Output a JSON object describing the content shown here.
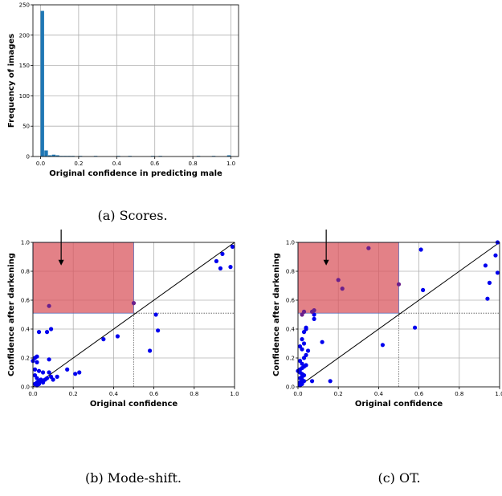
{
  "captions": {
    "a": "(a) Scores.",
    "b": "(b) Mode-shift.",
    "c": "(c) OT."
  },
  "colors": {
    "bar": "#1f77b4",
    "point": "#0000ee",
    "point_in_region": "#6a1f8c",
    "region": "#d9575f",
    "grid": "#b0b0b0"
  },
  "chart_data": [
    {
      "type": "bar",
      "id": "histogram",
      "title": "",
      "xlabel": "Original confidence in predicting male",
      "ylabel": "Frequency of images",
      "xlim": [
        -0.04,
        1.04
      ],
      "ylim": [
        0,
        250
      ],
      "xticks": [
        0.0,
        0.2,
        0.4,
        0.6,
        0.8,
        1.0
      ],
      "xtick_labels": [
        "0.0",
        "0.2",
        "0.4",
        "0.6",
        "0.8",
        "1.0"
      ],
      "yticks": [
        0,
        50,
        100,
        150,
        200,
        250
      ],
      "ytick_labels": [
        "0",
        "50",
        "100",
        "150",
        "200",
        "250"
      ],
      "grid": true,
      "bin_width": 0.02,
      "bin_starts": [
        0.0,
        0.02,
        0.04,
        0.06,
        0.08,
        0.1,
        0.12,
        0.14,
        0.16,
        0.2,
        0.28,
        0.4,
        0.46,
        0.58,
        0.62,
        0.82,
        0.9,
        0.98
      ],
      "values": [
        240,
        10,
        2,
        3,
        2,
        1,
        1,
        1,
        1,
        1,
        1,
        1,
        1,
        1,
        1,
        1,
        1,
        2
      ]
    },
    {
      "type": "scatter",
      "id": "mode-shift",
      "title": "",
      "xlabel": "Original confidence",
      "ylabel": "Confidence after darkening",
      "xlim": [
        0,
        1
      ],
      "ylim": [
        0,
        1
      ],
      "xticks": [
        0.0,
        0.2,
        0.4,
        0.6,
        0.8,
        1.0
      ],
      "xtick_labels": [
        "0.0",
        "0.2",
        "0.4",
        "0.6",
        "0.8",
        "1.0"
      ],
      "yticks": [
        0.0,
        0.2,
        0.4,
        0.6,
        0.8,
        1.0
      ],
      "ytick_labels": [
        "0.0",
        "0.2",
        "0.4",
        "0.6",
        "0.8",
        "1.0"
      ],
      "grid": true,
      "region": {
        "x": [
          0,
          0.5
        ],
        "y": [
          0.51,
          1.0
        ]
      },
      "arrow": {
        "x": 0.14,
        "y_from": 1.0,
        "y_to": 0.84
      },
      "points_x": [
        0.01,
        0.02,
        0.03,
        0.04,
        0.05,
        0.02,
        0.01,
        0.03,
        0.06,
        0.02,
        0.04,
        0.01,
        0.03,
        0.05,
        0.07,
        0.02,
        0.0,
        0.01,
        0.08,
        0.05,
        0.09,
        0.12,
        0.17,
        0.21,
        0.23,
        0.08,
        0.09,
        0.07,
        0.03,
        0.02,
        0.1,
        0.35,
        0.42,
        0.58,
        0.61,
        0.62,
        0.91,
        0.93,
        0.94,
        0.98,
        0.99,
        0.08,
        0.5
      ],
      "points_y": [
        0.02,
        0.03,
        0.04,
        0.05,
        0.03,
        0.06,
        0.08,
        0.02,
        0.05,
        0.01,
        0.04,
        0.12,
        0.11,
        0.1,
        0.06,
        0.17,
        0.18,
        0.2,
        0.1,
        0.04,
        0.07,
        0.07,
        0.12,
        0.09,
        0.1,
        0.19,
        0.4,
        0.38,
        0.38,
        0.21,
        0.05,
        0.33,
        0.35,
        0.25,
        0.5,
        0.39,
        0.87,
        0.82,
        0.92,
        0.83,
        0.97,
        0.56,
        0.58
      ],
      "points_in_region": [
        false,
        false,
        false,
        false,
        false,
        false,
        false,
        false,
        false,
        false,
        false,
        false,
        false,
        false,
        false,
        false,
        false,
        false,
        false,
        false,
        false,
        false,
        false,
        false,
        false,
        false,
        false,
        false,
        false,
        false,
        false,
        false,
        false,
        false,
        false,
        false,
        false,
        false,
        false,
        false,
        false,
        true,
        true
      ]
    },
    {
      "type": "scatter",
      "id": "ot",
      "title": "",
      "xlabel": "Original confidence",
      "ylabel": "Confidence after darkening",
      "xlim": [
        0,
        1
      ],
      "ylim": [
        0,
        1
      ],
      "xticks": [
        0.0,
        0.2,
        0.4,
        0.6,
        0.8,
        1.0
      ],
      "xtick_labels": [
        "0.0",
        "0.2",
        "0.4",
        "0.6",
        "0.8",
        "1.0"
      ],
      "yticks": [
        0.0,
        0.2,
        0.4,
        0.6,
        0.8,
        1.0
      ],
      "ytick_labels": [
        "0.0",
        "0.2",
        "0.4",
        "0.6",
        "0.8",
        "1.0"
      ],
      "grid": true,
      "region": {
        "x": [
          0,
          0.5
        ],
        "y": [
          0.51,
          1.0
        ]
      },
      "arrow": {
        "x": 0.14,
        "y_from": 1.0,
        "y_to": 0.84
      },
      "points_x": [
        0.01,
        0.02,
        0.01,
        0.03,
        0.02,
        0.01,
        0.02,
        0.03,
        0.02,
        0.01,
        0.0,
        0.01,
        0.02,
        0.03,
        0.04,
        0.02,
        0.01,
        0.03,
        0.04,
        0.05,
        0.02,
        0.01,
        0.03,
        0.02,
        0.03,
        0.04,
        0.04,
        0.02,
        0.01,
        0.02,
        0.07,
        0.08,
        0.08,
        0.12,
        0.16,
        0.42,
        0.58,
        0.61,
        0.62,
        0.93,
        0.94,
        0.95,
        0.98,
        0.99,
        0.99,
        0.02,
        0.03,
        0.07,
        0.08,
        0.2,
        0.22,
        0.35,
        0.5
      ],
      "points_y": [
        0.01,
        0.02,
        0.03,
        0.04,
        0.05,
        0.06,
        0.07,
        0.08,
        0.09,
        0.1,
        0.11,
        0.12,
        0.13,
        0.14,
        0.15,
        0.16,
        0.18,
        0.2,
        0.22,
        0.25,
        0.26,
        0.28,
        0.3,
        0.33,
        0.38,
        0.4,
        0.41,
        0.03,
        0.02,
        0.04,
        0.04,
        0.47,
        0.5,
        0.31,
        0.04,
        0.29,
        0.41,
        0.95,
        0.67,
        0.84,
        0.61,
        0.72,
        0.91,
        0.79,
        1.0,
        0.5,
        0.52,
        0.52,
        0.53,
        0.74,
        0.68,
        0.96,
        0.71
      ],
      "points_in_region": [
        false,
        false,
        false,
        false,
        false,
        false,
        false,
        false,
        false,
        false,
        false,
        false,
        false,
        false,
        false,
        false,
        false,
        false,
        false,
        false,
        false,
        false,
        false,
        false,
        false,
        false,
        false,
        false,
        false,
        false,
        false,
        false,
        false,
        false,
        false,
        false,
        false,
        false,
        false,
        false,
        false,
        false,
        false,
        false,
        false,
        true,
        true,
        true,
        true,
        true,
        true,
        true,
        true
      ]
    }
  ]
}
